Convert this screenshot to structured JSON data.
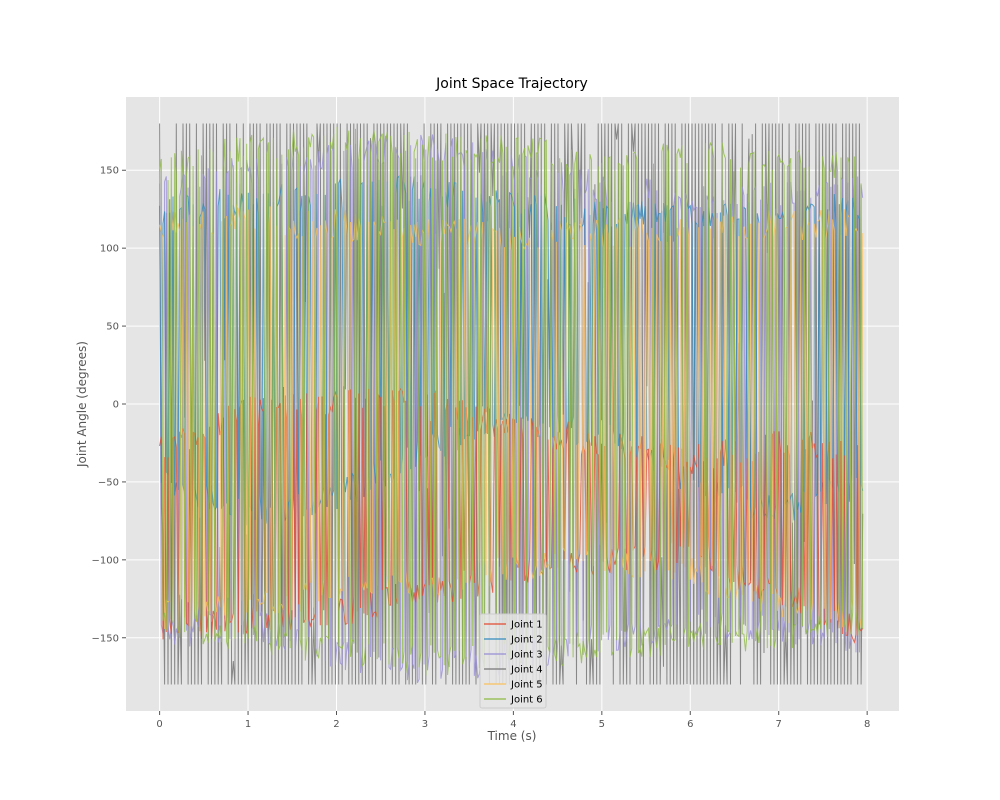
{
  "chart_data": {
    "type": "line",
    "title": "Joint Space Trajectory",
    "xlabel": "Time (s)",
    "ylabel": "Joint Angle (degrees)",
    "xlim": [
      -0.38,
      8.36
    ],
    "ylim": [
      -197,
      197
    ],
    "xticks": [
      0,
      1,
      2,
      3,
      4,
      5,
      6,
      7,
      8
    ],
    "yticks": [
      -150,
      -100,
      -50,
      0,
      50,
      100,
      150
    ],
    "ytick_labels": [
      "−150",
      "−100",
      "−50",
      "0",
      "50",
      "100",
      "150"
    ],
    "xtick_labels": [
      "0",
      "1",
      "2",
      "3",
      "4",
      "5",
      "6",
      "7",
      "8"
    ],
    "grid": true,
    "legend_position": "lower-center",
    "t_end": 7.95,
    "series": [
      {
        "name": "Joint 1",
        "color": "#E24A33",
        "x": [
          0,
          1,
          2,
          3,
          4,
          5,
          6,
          7,
          7.95
        ],
        "env_low": [
          -158,
          -147,
          -143,
          -132,
          -118,
          -110,
          -106,
          -130,
          -158
        ],
        "env_high": [
          -20,
          5,
          12,
          10,
          -5,
          -15,
          -25,
          -15,
          -20
        ]
      },
      {
        "name": "Joint 2",
        "color": "#348ABD",
        "x": [
          0,
          1,
          2,
          3,
          4,
          5,
          6,
          7,
          7.95
        ],
        "env_low": [
          -60,
          -80,
          -70,
          -40,
          -20,
          -30,
          -60,
          -80,
          -60
        ],
        "env_high": [
          135,
          140,
          145,
          147,
          138,
          132,
          130,
          135,
          135
        ]
      },
      {
        "name": "Joint 3",
        "color": "#988ED5",
        "x": [
          0,
          1,
          2,
          3,
          4,
          5,
          6,
          7,
          7.95
        ],
        "env_low": [
          -160,
          -150,
          -170,
          -180,
          -175,
          -160,
          -150,
          -155,
          -160
        ],
        "env_high": [
          150,
          160,
          170,
          178,
          162,
          150,
          140,
          143,
          147
        ]
      },
      {
        "name": "Joint 4",
        "color": "#777777",
        "x": [
          0,
          1,
          2,
          3,
          4,
          5,
          6,
          7,
          7.95
        ],
        "env_low": [
          -180,
          -180,
          -180,
          -180,
          -180,
          -180,
          -180,
          -180,
          -180
        ],
        "env_high": [
          180,
          180,
          180,
          180,
          180,
          180,
          180,
          180,
          180
        ]
      },
      {
        "name": "Joint 5",
        "color": "#FBC15E",
        "x": [
          0,
          1,
          2,
          3,
          4,
          5,
          6,
          7,
          7.95
        ],
        "env_low": [
          -145,
          -140,
          -130,
          -125,
          -115,
          -110,
          -118,
          -140,
          -145
        ],
        "env_high": [
          125,
          128,
          125,
          120,
          118,
          120,
          122,
          125,
          125
        ]
      },
      {
        "name": "Joint 6",
        "color": "#8EBA42",
        "x": [
          0,
          1,
          2,
          3,
          4,
          5,
          6,
          7,
          7.95
        ],
        "env_low": [
          -150,
          -160,
          -170,
          -175,
          -172,
          -165,
          -160,
          -158,
          -150
        ],
        "env_high": [
          160,
          175,
          178,
          175,
          172,
          170,
          168,
          170,
          160
        ]
      }
    ]
  }
}
